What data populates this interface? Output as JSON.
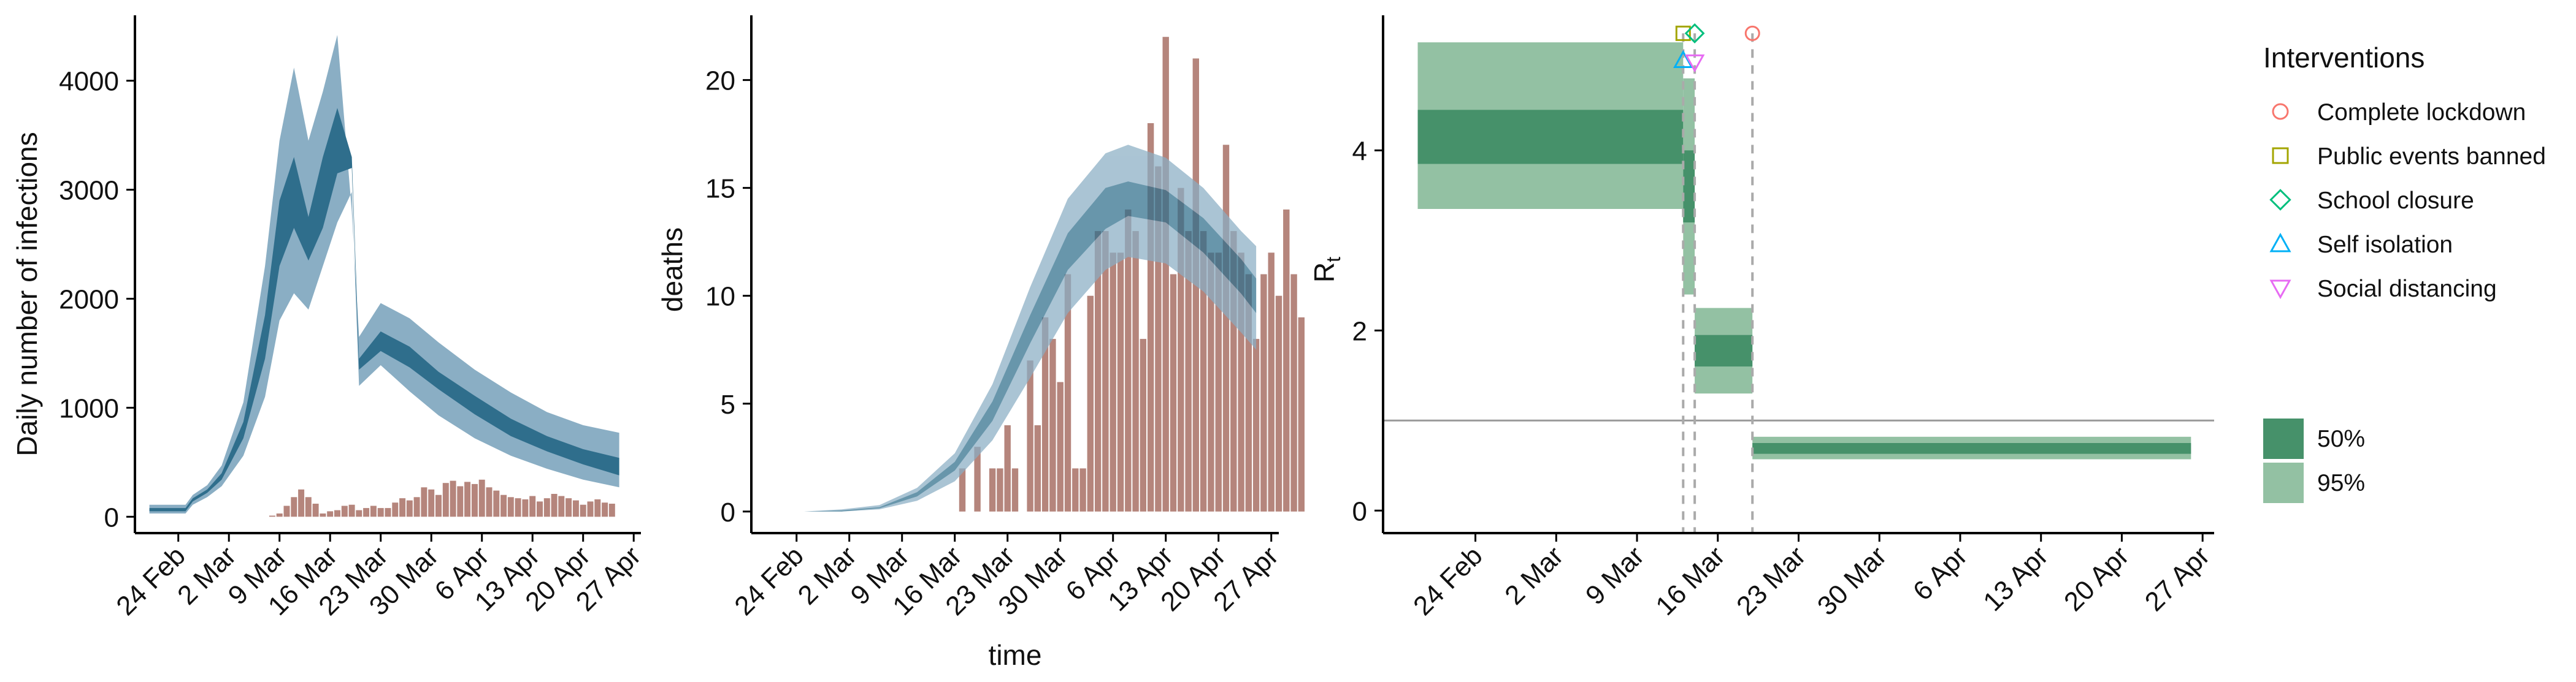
{
  "colors": {
    "blue_inner": "#2f6e8c",
    "blue_outer": "#8aaec4",
    "bar": "#b5857c",
    "green_inner": "#46916a",
    "green_outer": "#93c1a3",
    "ref_line": "#999999",
    "dash_line": "#aaaaaa"
  },
  "chart_data": [
    {
      "type": "area",
      "ylabel": "Daily number of infections",
      "xlabel": "",
      "x_ticks": [
        "24 Feb",
        "2 Mar",
        "9 Mar",
        "16 Mar",
        "23 Mar",
        "30 Mar",
        "6 Apr",
        "13 Apr",
        "20 Apr",
        "27 Apr"
      ],
      "x_tick_dates": [
        "2020-02-24",
        "2020-03-02",
        "2020-03-09",
        "2020-03-16",
        "2020-03-23",
        "2020-03-30",
        "2020-04-06",
        "2020-04-13",
        "2020-04-20",
        "2020-04-27"
      ],
      "xlim": [
        "2020-02-18",
        "2020-04-28"
      ],
      "y_ticks": [
        0,
        1000,
        2000,
        3000,
        4000
      ],
      "ylim": [
        -150,
        4600
      ],
      "bands": {
        "dates": [
          "2020-02-20",
          "2020-02-25",
          "2020-02-26",
          "2020-02-28",
          "2020-03-01",
          "2020-03-04",
          "2020-03-07",
          "2020-03-09",
          "2020-03-11",
          "2020-03-13",
          "2020-03-15",
          "2020-03-17",
          "2020-03-19",
          "2020-03-20",
          "2020-03-23",
          "2020-03-27",
          "2020-03-31",
          "2020-04-05",
          "2020-04-10",
          "2020-04-15",
          "2020-04-20",
          "2020-04-25"
        ],
        "outer_low": [
          30,
          30,
          110,
          180,
          280,
          560,
          1100,
          1800,
          2050,
          1900,
          2300,
          2700,
          2980,
          1200,
          1390,
          1150,
          930,
          720,
          560,
          440,
          340,
          270
        ],
        "outer_high": [
          110,
          110,
          200,
          290,
          470,
          1050,
          2300,
          3450,
          4120,
          3450,
          3900,
          4420,
          2800,
          1650,
          1960,
          1820,
          1600,
          1350,
          1140,
          960,
          840,
          770
        ],
        "inner_low": [
          50,
          50,
          140,
          220,
          340,
          720,
          1450,
          2300,
          2650,
          2350,
          2650,
          3150,
          3200,
          1350,
          1520,
          1370,
          1170,
          940,
          740,
          600,
          480,
          380
        ],
        "inner_high": [
          80,
          80,
          170,
          250,
          400,
          870,
          1850,
          2900,
          3300,
          2750,
          3300,
          3750,
          3300,
          1450,
          1700,
          1560,
          1330,
          1110,
          900,
          740,
          620,
          540
        ]
      },
      "bars": {
        "start_date": "2020-03-08",
        "values": [
          10,
          30,
          100,
          180,
          250,
          180,
          120,
          30,
          50,
          60,
          100,
          110,
          60,
          80,
          100,
          80,
          80,
          130,
          170,
          150,
          180,
          270,
          250,
          200,
          310,
          330,
          280,
          320,
          300,
          340,
          270,
          240,
          200,
          180,
          170,
          160,
          190,
          140,
          170,
          210,
          190,
          170,
          150,
          110,
          140,
          160,
          130,
          120
        ]
      }
    },
    {
      "type": "bar",
      "ylabel": "deaths",
      "xlabel": "time",
      "x_ticks": [
        "24 Feb",
        "2 Mar",
        "9 Mar",
        "16 Mar",
        "23 Mar",
        "30 Mar",
        "6 Apr",
        "13 Apr",
        "20 Apr",
        "27 Apr"
      ],
      "x_tick_dates": [
        "2020-02-24",
        "2020-03-02",
        "2020-03-09",
        "2020-03-16",
        "2020-03-23",
        "2020-03-30",
        "2020-04-06",
        "2020-04-13",
        "2020-04-20",
        "2020-04-27"
      ],
      "xlim": [
        "2020-02-18",
        "2020-04-28"
      ],
      "y_ticks": [
        0,
        5,
        10,
        15,
        20
      ],
      "ylim": [
        -1,
        23
      ],
      "bands": {
        "dates": [
          "2020-02-20",
          "2020-02-25",
          "2020-03-01",
          "2020-03-06",
          "2020-03-11",
          "2020-03-16",
          "2020-03-21",
          "2020-03-26",
          "2020-03-31",
          "2020-04-05",
          "2020-04-08",
          "2020-04-13",
          "2020-04-18",
          "2020-04-23",
          "2020-04-25"
        ],
        "outer_low": [
          0,
          0,
          0,
          0.1,
          0.5,
          1.4,
          3.3,
          6.2,
          9.2,
          11.2,
          11.8,
          11.5,
          10.2,
          8.3,
          7.5
        ],
        "outer_high": [
          0,
          0,
          0.1,
          0.3,
          1.1,
          2.7,
          5.9,
          10.4,
          14.5,
          16.6,
          17.0,
          16.4,
          15.0,
          13.0,
          12.3
        ],
        "inner_low": [
          0,
          0,
          0,
          0.15,
          0.7,
          1.9,
          4.2,
          7.8,
          11.2,
          13.1,
          13.7,
          13.4,
          12.0,
          10.1,
          9.2
        ],
        "inner_high": [
          0,
          0,
          0.05,
          0.2,
          0.9,
          2.3,
          5.1,
          9.1,
          12.9,
          15.0,
          15.3,
          14.9,
          13.6,
          11.7,
          10.8
        ]
      },
      "bars": {
        "start_date": "2020-03-15",
        "values": [
          0,
          0,
          2,
          0,
          3,
          0,
          2,
          2,
          4,
          2,
          0,
          7,
          4,
          9,
          8,
          6,
          11,
          2,
          2,
          10,
          13,
          13,
          12,
          12,
          14,
          13,
          8,
          18,
          16,
          22,
          11,
          15,
          13,
          21,
          13,
          12,
          12,
          17,
          13,
          12,
          11,
          8,
          11,
          12,
          10,
          14,
          11,
          9
        ]
      }
    },
    {
      "type": "area",
      "ylabel": "R",
      "ylabel_sub": "t",
      "xlabel": "",
      "x_ticks": [
        "24 Feb",
        "2 Mar",
        "9 Mar",
        "16 Mar",
        "23 Mar",
        "30 Mar",
        "6 Apr",
        "13 Apr",
        "20 Apr",
        "27 Apr"
      ],
      "x_tick_dates": [
        "2020-02-24",
        "2020-03-02",
        "2020-03-09",
        "2020-03-16",
        "2020-03-23",
        "2020-03-30",
        "2020-04-06",
        "2020-04-13",
        "2020-04-20",
        "2020-04-27"
      ],
      "xlim": [
        "2020-02-16",
        "2020-04-28"
      ],
      "y_ticks": [
        0,
        2,
        4
      ],
      "ylim": [
        -0.25,
        5.5
      ],
      "reference_line": 1,
      "segments": [
        {
          "start": "2020-02-19",
          "end": "2020-03-13",
          "low95": 3.35,
          "high95": 5.2,
          "low50": 3.85,
          "high50": 4.45
        },
        {
          "start": "2020-03-13",
          "end": "2020-03-14",
          "low95": 2.4,
          "high95": 4.8,
          "low50": 3.2,
          "high50": 4.0
        },
        {
          "start": "2020-03-14",
          "end": "2020-03-19",
          "low95": 1.3,
          "high95": 2.25,
          "low50": 1.6,
          "high50": 1.95
        },
        {
          "start": "2020-03-19",
          "end": "2020-04-26",
          "low95": 0.57,
          "high95": 0.82,
          "low50": 0.63,
          "high50": 0.75
        }
      ],
      "interventions": [
        {
          "name": "Complete lockdown",
          "date": "2020-03-19",
          "symbol": "circle",
          "color": "#f8766d",
          "y": 5.3
        },
        {
          "name": "Public events banned",
          "date": "2020-03-13",
          "symbol": "square",
          "color": "#a3a500",
          "y": 5.3
        },
        {
          "name": "School closure",
          "date": "2020-03-14",
          "symbol": "diamond",
          "color": "#00bf7d",
          "y": 5.3
        },
        {
          "name": "Self isolation",
          "date": "2020-03-13",
          "symbol": "triangle-up",
          "color": "#00b0f6",
          "y": 5.0
        },
        {
          "name": "Social distancing",
          "date": "2020-03-14",
          "symbol": "triangle-down",
          "color": "#e76bf3",
          "y": 4.98
        }
      ],
      "legend_title": "Interventions",
      "ci_legend": [
        "50%",
        "95%"
      ]
    }
  ]
}
